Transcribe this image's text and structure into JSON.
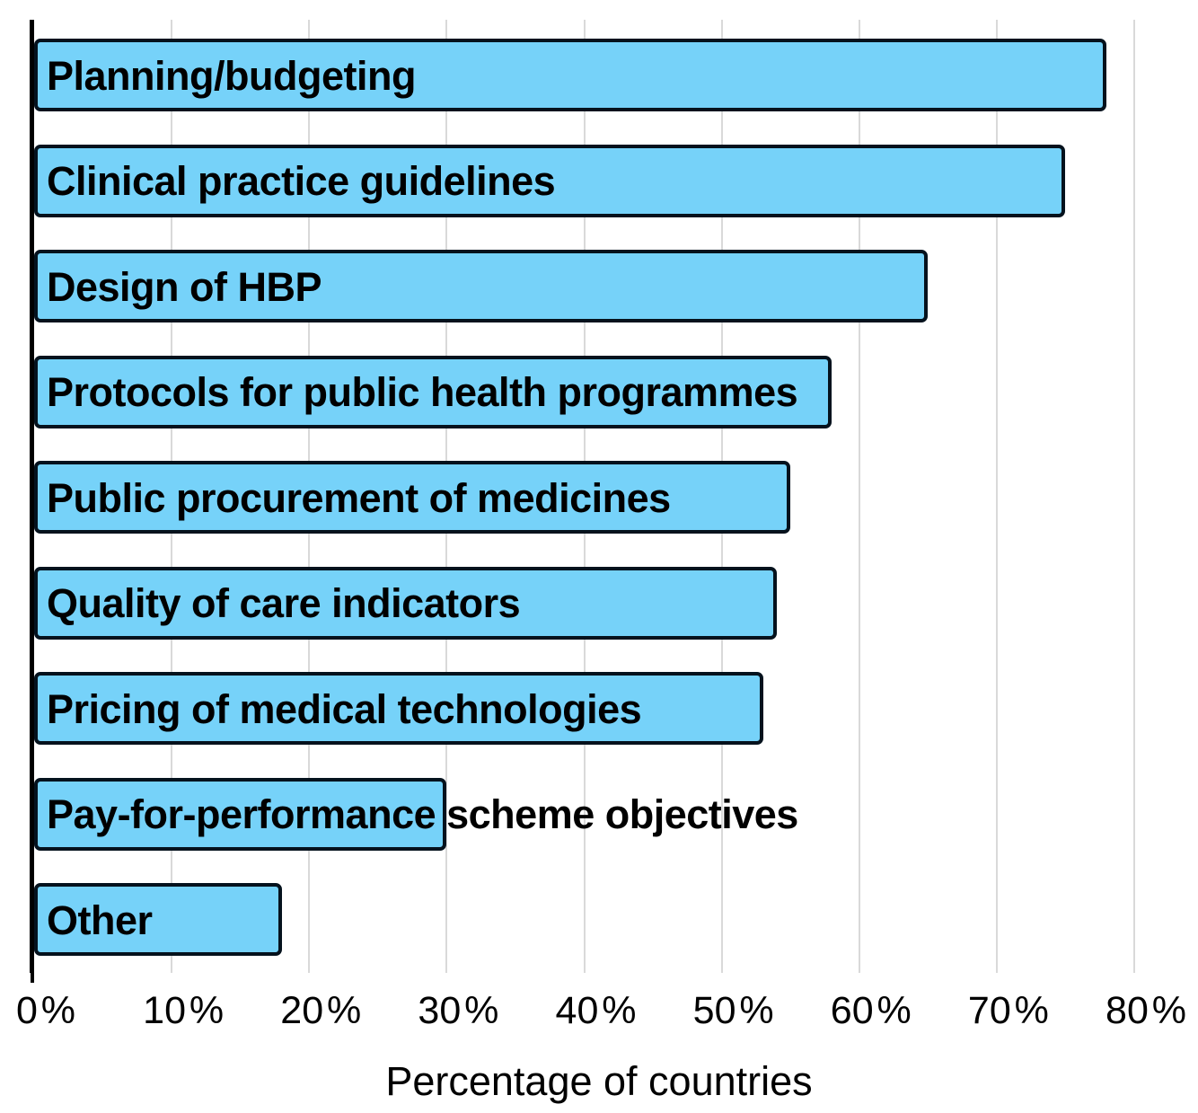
{
  "chart_data": {
    "type": "bar",
    "orientation": "horizontal",
    "title": "",
    "xlabel": "Percentage of countries",
    "ylabel": "",
    "categories": [
      "Planning/budgeting",
      "Clinical practice guidelines",
      "Design of HBP",
      "Protocols for public health programmes",
      "Public procurement of medicines",
      "Quality of care indicators",
      "Pricing of medical technologies",
      "Pay-for-performance scheme objectives",
      "Other"
    ],
    "values": [
      78,
      75,
      65,
      58,
      55,
      54,
      53,
      30,
      18
    ],
    "value_unit": "%",
    "xlim": [
      0,
      80
    ],
    "xticks": [
      0,
      10,
      20,
      30,
      40,
      50,
      60,
      70,
      80
    ],
    "xtick_suffix": "%",
    "grid": "vertical",
    "legend": "none",
    "label_position": "inside-left",
    "colors": {
      "bar_fill": "#76D2F9",
      "bar_border": "#05121d",
      "gridline": "#D9D9D9",
      "axis": "#000000",
      "text": "#000000",
      "background": "#ffffff"
    }
  }
}
